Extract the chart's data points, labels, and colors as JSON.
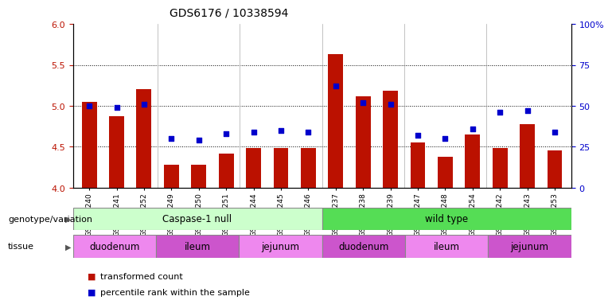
{
  "title": "GDS6176 / 10338594",
  "samples": [
    "GSM805240",
    "GSM805241",
    "GSM805252",
    "GSM805249",
    "GSM805250",
    "GSM805251",
    "GSM805244",
    "GSM805245",
    "GSM805246",
    "GSM805237",
    "GSM805238",
    "GSM805239",
    "GSM805247",
    "GSM805248",
    "GSM805254",
    "GSM805242",
    "GSM805243",
    "GSM805253"
  ],
  "transformed_count": [
    5.05,
    4.87,
    5.2,
    4.28,
    4.28,
    4.42,
    4.48,
    4.48,
    4.48,
    5.63,
    5.12,
    5.18,
    4.55,
    4.38,
    4.65,
    4.48,
    4.78,
    4.45
  ],
  "percentile_rank": [
    50,
    49,
    51,
    30,
    29,
    33,
    34,
    35,
    34,
    62,
    52,
    51,
    32,
    30,
    36,
    46,
    47,
    34
  ],
  "bar_color": "#bb1100",
  "dot_color": "#0000cc",
  "bar_bottom": 4.0,
  "ylim_left": [
    4.0,
    6.0
  ],
  "ylim_right": [
    0,
    100
  ],
  "yticks_left": [
    4.0,
    4.5,
    5.0,
    5.5,
    6.0
  ],
  "yticks_right": [
    0,
    25,
    50,
    75,
    100
  ],
  "ytick_labels_right": [
    "0",
    "25",
    "50",
    "75",
    "100%"
  ],
  "grid_values": [
    4.5,
    5.0,
    5.5
  ],
  "genotype_groups": [
    {
      "label": "Caspase-1 null",
      "start": 0,
      "end": 9,
      "color": "#ccffcc"
    },
    {
      "label": "wild type",
      "start": 9,
      "end": 18,
      "color": "#55dd55"
    }
  ],
  "tissue_groups": [
    {
      "label": "duodenum",
      "start": 0,
      "end": 3,
      "color": "#ee88ee"
    },
    {
      "label": "ileum",
      "start": 3,
      "end": 6,
      "color": "#cc55cc"
    },
    {
      "label": "jejunum",
      "start": 6,
      "end": 9,
      "color": "#ee88ee"
    },
    {
      "label": "duodenum",
      "start": 9,
      "end": 12,
      "color": "#cc55cc"
    },
    {
      "label": "ileum",
      "start": 12,
      "end": 15,
      "color": "#ee88ee"
    },
    {
      "label": "jejunum",
      "start": 15,
      "end": 18,
      "color": "#cc55cc"
    }
  ],
  "legend_items": [
    {
      "label": "transformed count",
      "color": "#bb1100"
    },
    {
      "label": "percentile rank within the sample",
      "color": "#0000cc"
    }
  ],
  "genotype_label": "genotype/variation",
  "tissue_label": "tissue",
  "background_color": "#ffffff"
}
